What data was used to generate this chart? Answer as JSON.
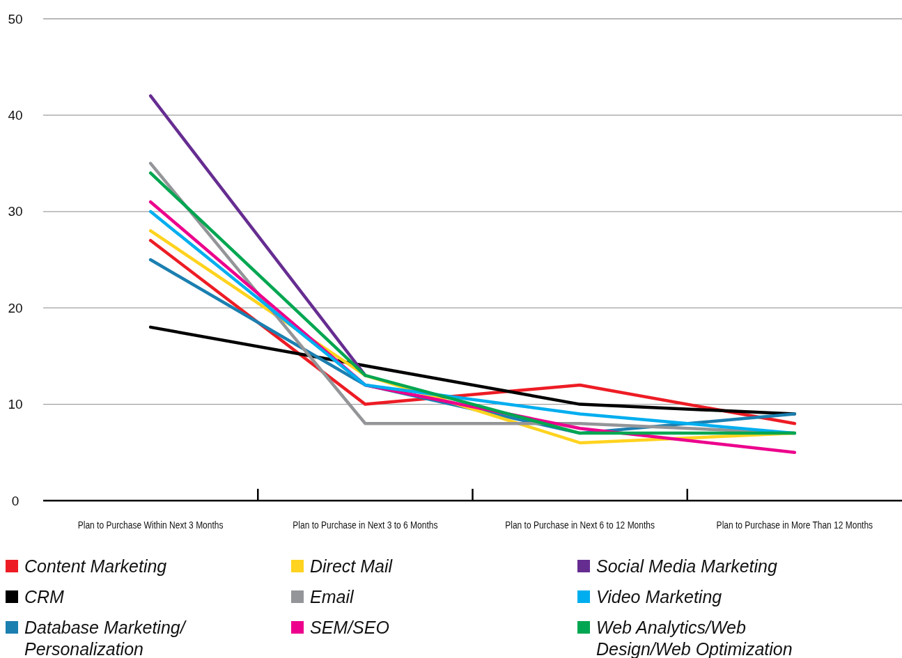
{
  "chart_data": {
    "type": "line",
    "categories": [
      "Plan to Purchase Within Next 3 Months",
      "Plan to Purchase in Next 3 to 6 Months",
      "Plan to Purchase in Next 6 to 12 Months",
      "Plan to Purchase in More Than 12 Months"
    ],
    "series": [
      {
        "name": "Content Marketing",
        "color": "#ed1c24",
        "values": [
          27,
          10,
          12,
          8
        ]
      },
      {
        "name": "CRM",
        "color": "#000000",
        "values": [
          18,
          14,
          10,
          9
        ]
      },
      {
        "name": "Database Marketing/Personalization",
        "color": "#1b7fb0",
        "values": [
          25,
          12,
          7,
          9
        ]
      },
      {
        "name": "Direct Mail",
        "color": "#ffd31f",
        "values": [
          28,
          13,
          6,
          7
        ]
      },
      {
        "name": "Email",
        "color": "#939598",
        "values": [
          35,
          8,
          8,
          7
        ]
      },
      {
        "name": "SEM/SEO",
        "color": "#ec008c",
        "values": [
          31,
          12,
          7.5,
          5
        ]
      },
      {
        "name": "Social Media Marketing",
        "color": "#662d91",
        "values": [
          42,
          13,
          null,
          null
        ]
      },
      {
        "name": "Video Marketing",
        "color": "#00aeef",
        "values": [
          30,
          12,
          9,
          7
        ]
      },
      {
        "name": "Web Analytics/Web Design/Web Optimization",
        "color": "#00a651",
        "values": [
          34,
          13,
          7,
          7
        ]
      }
    ],
    "ylim": [
      0,
      50
    ],
    "yticks": [
      0,
      10,
      20,
      30,
      40,
      50
    ],
    "grid": "y",
    "legend": "bottom",
    "marker": "none",
    "line_style": "solid"
  }
}
